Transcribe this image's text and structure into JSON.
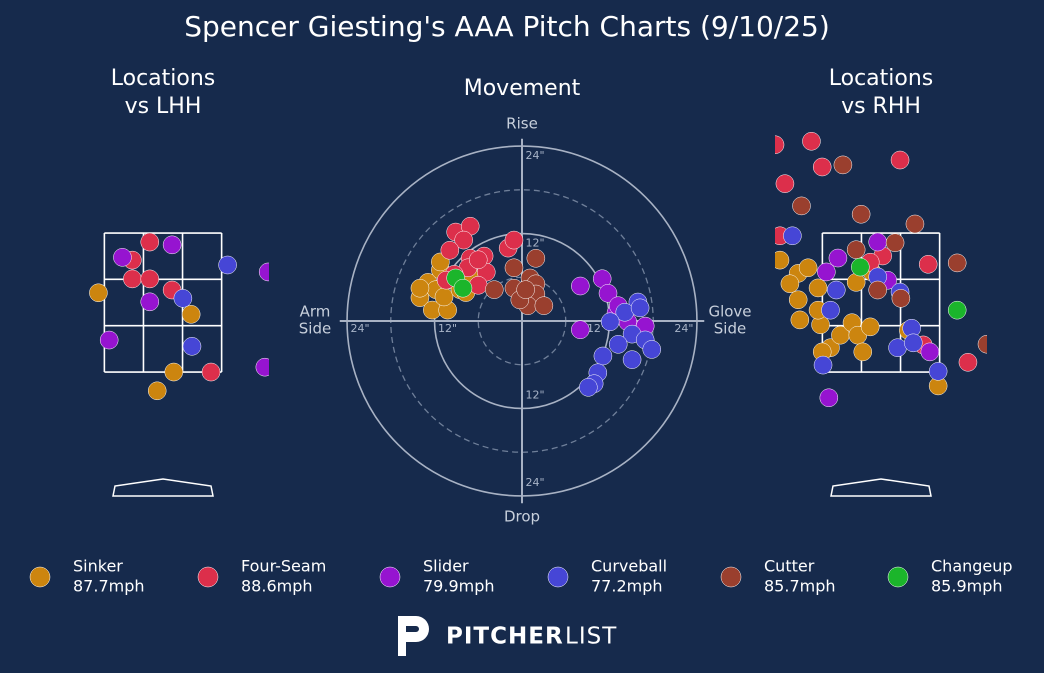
{
  "title": "Spencer Giesting's AAA Pitch Charts (9/10/25)",
  "logo": [
    "PITCHER",
    "LIST"
  ],
  "chart_data": [
    {
      "type": "scatter",
      "title": [
        "Locations",
        "vs LHH"
      ],
      "xlim": [
        -1.28,
        1.28
      ],
      "ylim": [
        -0.3,
        5
      ],
      "series": [
        {
          "x": [
            -0.78,
            0.34,
            0.13,
            -0.07
          ],
          "y": [
            2.64,
            2.33,
            1.5,
            1.23
          ]
        },
        {
          "x": [
            -0.16,
            -0.37,
            -0.37,
            -0.16,
            0.11,
            0.58
          ],
          "y": [
            3.37,
            3.11,
            2.84,
            2.84,
            2.68,
            1.5
          ]
        },
        {
          "x": [
            -0.49,
            0.11,
            -0.16,
            1.27,
            -0.65,
            1.23
          ],
          "y": [
            3.15,
            3.33,
            2.51,
            2.94,
            1.96,
            1.57
          ]
        },
        {
          "x": [
            0.78,
            0.24,
            0.35
          ],
          "y": [
            3.04,
            2.56,
            1.87
          ]
        },
        {
          "x": [],
          "y": []
        },
        {
          "x": [],
          "y": []
        }
      ]
    },
    {
      "type": "movement",
      "title": "Movement",
      "xlim": [
        -25,
        25
      ],
      "ylim": [
        -25,
        25
      ],
      "axis_labels": {
        "top": "Rise",
        "bottom": "Drop",
        "left": [
          "Arm",
          "Side"
        ],
        "right": [
          "Glove",
          "Side"
        ]
      },
      "rticks": [
        {
          "value": 12,
          "label": "12\""
        },
        {
          "value": 24,
          "label": "24\""
        }
      ],
      "minor_rticks": [
        6,
        18
      ],
      "series": [
        {
          "name": "Sinker",
          "velocity": "87.7mph",
          "color": "#cc850f",
          "x": [
            -14.0,
            -12.9,
            -11.8,
            -12.3,
            -10.2,
            -11.2,
            -10.7,
            -9.6,
            -8.5,
            -7.7,
            -7.1,
            -11.2,
            -14.0
          ],
          "y": [
            3.2,
            5.3,
            4.3,
            1.5,
            1.5,
            7.0,
            3.3,
            5.6,
            4.3,
            3.9,
            6.3,
            8.1,
            4.5
          ]
        },
        {
          "name": "Four-Seam",
          "velocity": "88.6mph",
          "color": "#dc2f4b",
          "x": [
            -9.1,
            -7.1,
            -8.0,
            -9.9,
            -7.1,
            -5.2,
            -4.9,
            -6.0,
            -7.4,
            -9.3,
            -1.9,
            -1.1,
            -6.0,
            -10.4
          ],
          "y": [
            12.2,
            13.0,
            11.1,
            9.7,
            8.6,
            8.9,
            6.7,
            4.9,
            7.3,
            6.4,
            10.0,
            11.1,
            8.4,
            5.6
          ]
        },
        {
          "name": "Slider",
          "velocity": "79.9mph",
          "color": "#9614d0",
          "x": [
            11.0,
            8.0,
            11.8,
            8.0,
            12.9,
            14.5,
            16.9,
            13.2
          ],
          "y": [
            5.8,
            4.8,
            3.8,
            -1.2,
            1.1,
            -0.1,
            -0.7,
            2.1
          ]
        },
        {
          "name": "Curveball",
          "velocity": "77.2mph",
          "color": "#4646d6",
          "x": [
            15.9,
            14.1,
            12.1,
            15.1,
            16.9,
            13.2,
            17.8,
            11.1,
            15.1,
            10.4,
            9.9,
            9.1,
            16.2
          ],
          "y": [
            2.6,
            1.2,
            -0.1,
            -1.8,
            -2.6,
            -3.2,
            -3.9,
            -4.8,
            -5.3,
            -7.1,
            -8.6,
            -9.1,
            1.8
          ]
        },
        {
          "name": "Cutter",
          "velocity": "85.7mph",
          "color": "#9a3f2e",
          "x": [
            1.9,
            -1.1,
            1.1,
            1.9,
            -1.1,
            1.9,
            0.8,
            3.0,
            -3.8,
            -0.3,
            0.5
          ],
          "y": [
            8.6,
            7.3,
            5.9,
            5.1,
            4.5,
            3.7,
            2.1,
            2.1,
            4.3,
            2.9,
            4.3
          ]
        },
        {
          "name": "Changeup",
          "velocity": "85.9mph",
          "color": "#1bb52b",
          "x": [
            -9.1,
            -8.1
          ],
          "y": [
            5.9,
            4.5
          ]
        }
      ]
    },
    {
      "type": "scatter",
      "title": [
        "Locations",
        "vs RHH"
      ],
      "xlim": [
        -1.28,
        1.28
      ],
      "ylim": [
        -0.3,
        5
      ],
      "series": [
        {
          "x": [
            -1.22,
            -1.0,
            -0.88,
            -1.1,
            -1.0,
            -0.76,
            -0.98,
            -0.73,
            -0.61,
            -0.71,
            -0.49,
            -0.35,
            -0.28,
            -0.13,
            -0.22,
            0.33,
            0.69,
            -0.3,
            -0.11,
            -0.76
          ],
          "y": [
            3.11,
            2.92,
            3.0,
            2.77,
            2.54,
            2.71,
            2.25,
            2.18,
            1.85,
            1.79,
            2.03,
            2.21,
            2.03,
            2.15,
            1.79,
            2.1,
            1.3,
            2.79,
            2.94,
            2.39
          ]
        },
        {
          "x": [
            -1.28,
            -0.84,
            -0.71,
            0.23,
            -1.16,
            -1.22,
            0.02,
            0.57,
            1.05,
            0.51,
            -0.13
          ],
          "y": [
            4.77,
            4.82,
            4.45,
            4.55,
            4.21,
            3.46,
            3.17,
            3.05,
            1.64,
            1.89,
            3.08
          ]
        },
        {
          "x": [
            -0.04,
            -0.52,
            -0.66,
            0.08,
            0.59,
            -0.63
          ],
          "y": [
            3.37,
            3.14,
            2.94,
            2.82,
            1.79,
            1.13
          ]
        },
        {
          "x": [
            -1.07,
            -0.54,
            -0.61,
            -0.04,
            0.23,
            0.37,
            0.2,
            0.39,
            0.69,
            -0.7
          ],
          "y": [
            3.46,
            2.68,
            2.39,
            2.87,
            2.65,
            2.13,
            1.85,
            1.92,
            1.51,
            1.6
          ]
        },
        {
          "x": [
            -0.46,
            -0.96,
            -0.24,
            0.41,
            0.17,
            -0.3,
            0.92,
            -0.04,
            0.24,
            1.28
          ],
          "y": [
            4.48,
            3.89,
            3.77,
            3.63,
            3.36,
            3.26,
            3.07,
            2.68,
            2.56,
            1.9
          ]
        },
        {
          "x": [
            -0.25,
            0.92
          ],
          "y": [
            3.01,
            2.39
          ]
        }
      ]
    }
  ]
}
